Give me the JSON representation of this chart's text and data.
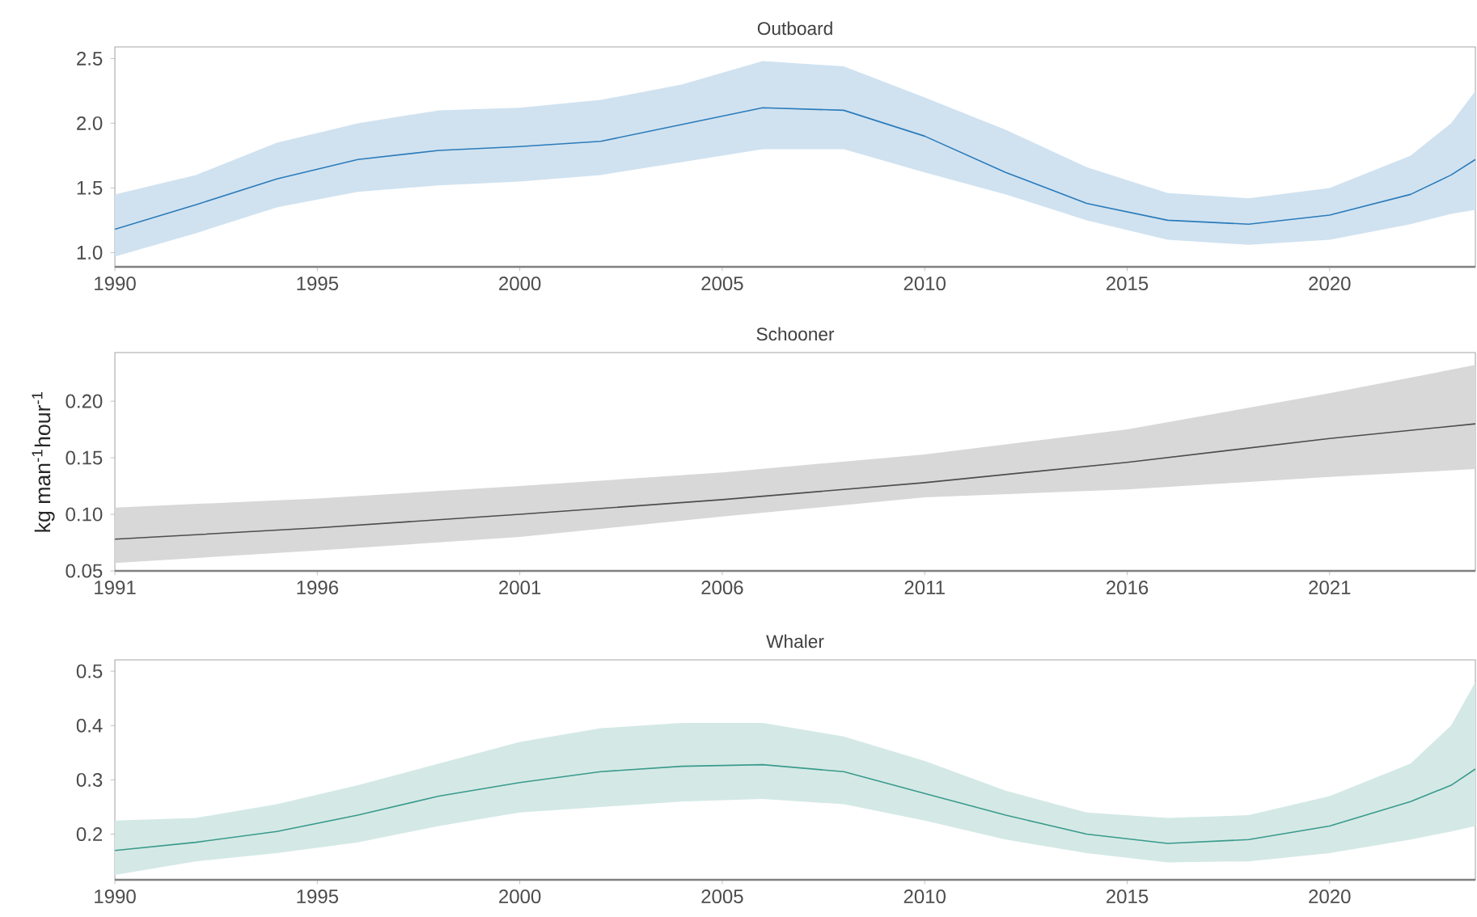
{
  "chart_data": [
    {
      "type": "line",
      "title": "Outboard",
      "xlim": [
        1990,
        2023.6
      ],
      "xticks": [
        1990,
        1995,
        2000,
        2005,
        2010,
        2015,
        2020
      ],
      "ylim": [
        0.89,
        2.59
      ],
      "yticks": [
        {
          "value": 1,
          "label": "1.0"
        },
        1.5,
        {
          "value": 2,
          "label": "2.0"
        },
        2.5
      ],
      "x": [
        1990,
        1992,
        1994,
        1996,
        1998,
        2000,
        2002,
        2004,
        2006,
        2008,
        2010,
        2012,
        2014,
        2016,
        2018,
        2020,
        2022,
        2023,
        2023.6
      ],
      "series": [
        {
          "color": "#2b7bba",
          "values": [
            1.18,
            1.37,
            1.57,
            1.72,
            1.79,
            1.82,
            1.86,
            1.99,
            2.12,
            2.1,
            1.9,
            1.62,
            1.38,
            1.25,
            1.22,
            1.29,
            1.45,
            1.6,
            1.72
          ],
          "lower": [
            0.97,
            1.15,
            1.35,
            1.47,
            1.52,
            1.55,
            1.6,
            1.7,
            1.8,
            1.8,
            1.62,
            1.45,
            1.25,
            1.1,
            1.06,
            1.1,
            1.22,
            1.3,
            1.33
          ],
          "upper": [
            1.45,
            1.6,
            1.85,
            2.0,
            2.1,
            2.12,
            2.18,
            2.3,
            2.48,
            2.44,
            2.2,
            1.95,
            1.66,
            1.46,
            1.42,
            1.5,
            1.75,
            2.0,
            2.25
          ]
        }
      ]
    },
    {
      "type": "line",
      "title": "Schooner",
      "ylabel": "kg man$^{-1}$hour$^{-1}$",
      "xlim": [
        1991,
        2024.6
      ],
      "xticks": [
        1991,
        1996,
        2001,
        2006,
        2011,
        2016,
        2021
      ],
      "ylim": [
        0.05,
        0.243
      ],
      "yticks": [
        0.05,
        {
          "value": 0.1,
          "label": "0.10"
        },
        0.15,
        {
          "value": 0.2,
          "label": "0.20"
        }
      ],
      "x": [
        1991,
        1996,
        2001,
        2006,
        2011,
        2016,
        2021,
        2024.6
      ],
      "series": [
        {
          "color": "#4d4d4d",
          "values": [
            0.078,
            0.088,
            0.1,
            0.113,
            0.128,
            0.146,
            0.167,
            0.18
          ],
          "lower": [
            0.057,
            0.068,
            0.08,
            0.098,
            0.115,
            0.122,
            0.133,
            0.14
          ],
          "upper": [
            0.106,
            0.114,
            0.125,
            0.137,
            0.153,
            0.175,
            0.207,
            0.232
          ]
        }
      ]
    },
    {
      "type": "line",
      "title": "Whaler",
      "xlim": [
        1990,
        2023.6
      ],
      "xticks": [
        1990,
        1995,
        2000,
        2005,
        2010,
        2015,
        2020
      ],
      "ylim": [
        0.116,
        0.521
      ],
      "yticks": [
        0.2,
        0.3,
        0.4,
        0.5
      ],
      "x": [
        1990,
        1992,
        1994,
        1996,
        1998,
        2000,
        2002,
        2004,
        2006,
        2008,
        2010,
        2012,
        2014,
        2016,
        2018,
        2020,
        2022,
        2023,
        2023.6
      ],
      "series": [
        {
          "color": "#3a9a8c",
          "values": [
            0.17,
            0.185,
            0.205,
            0.235,
            0.27,
            0.295,
            0.315,
            0.325,
            0.328,
            0.315,
            0.275,
            0.235,
            0.2,
            0.183,
            0.19,
            0.215,
            0.26,
            0.29,
            0.32
          ],
          "lower": [
            0.125,
            0.15,
            0.165,
            0.185,
            0.215,
            0.24,
            0.25,
            0.26,
            0.265,
            0.255,
            0.225,
            0.19,
            0.165,
            0.148,
            0.15,
            0.165,
            0.19,
            0.205,
            0.215
          ],
          "upper": [
            0.225,
            0.23,
            0.255,
            0.29,
            0.33,
            0.37,
            0.395,
            0.405,
            0.405,
            0.38,
            0.335,
            0.28,
            0.24,
            0.23,
            0.235,
            0.27,
            0.33,
            0.4,
            0.48
          ]
        }
      ]
    }
  ]
}
